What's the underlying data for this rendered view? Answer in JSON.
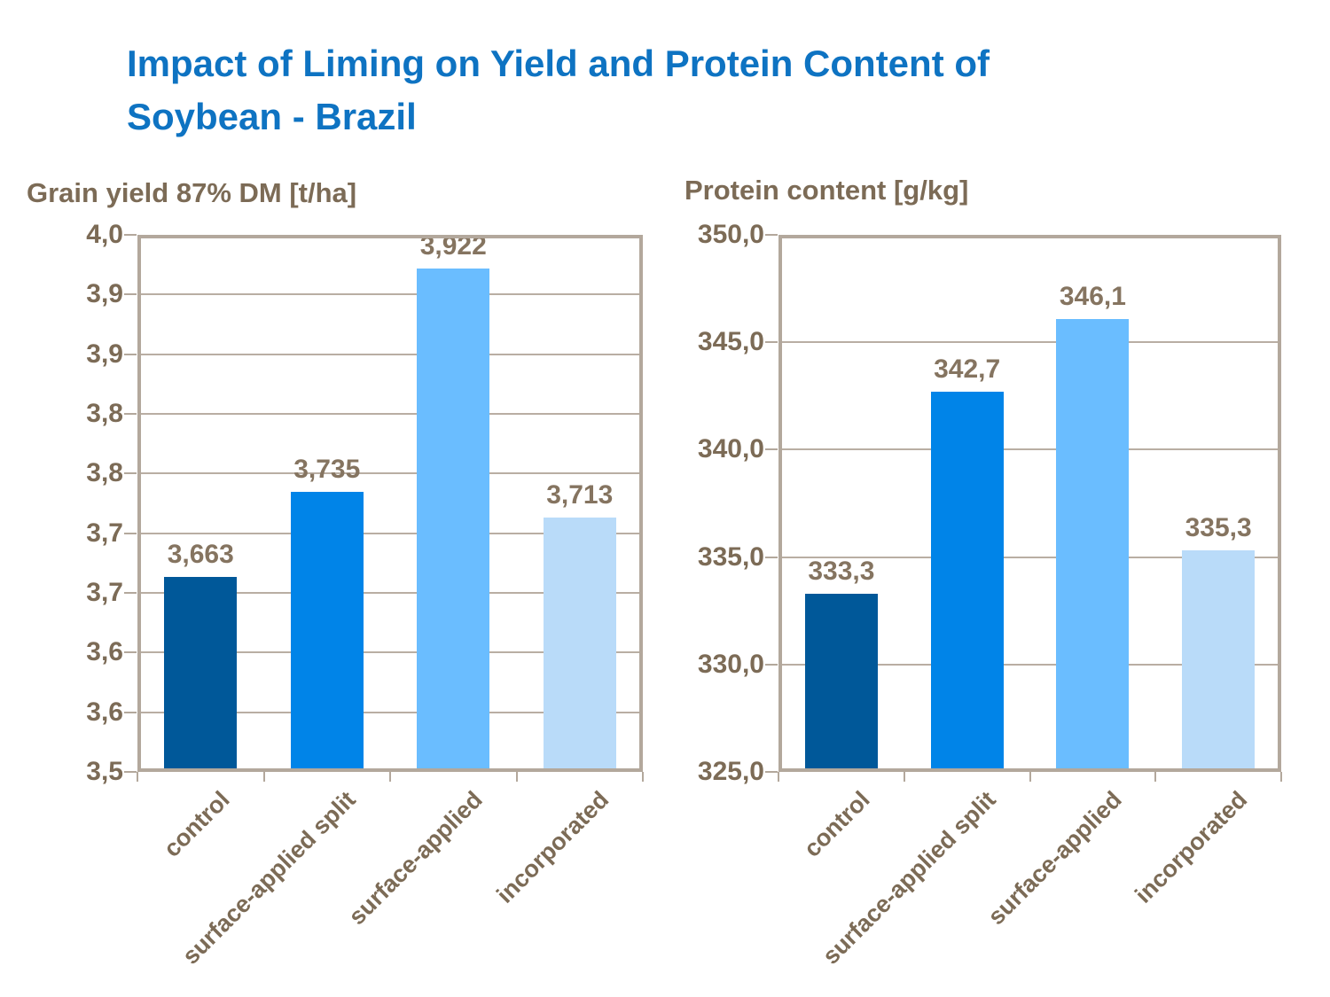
{
  "title": {
    "line1": "Impact of Liming on Yield and Protein Content of",
    "line2": "Soybean - Brazil"
  },
  "colors": {
    "title_blue": "#0e73c2",
    "text_brown": "#7c6b56",
    "value_brown": "#857460",
    "frame_taupe": "#b3a89c",
    "gridline": "#b9aea3",
    "bar_palette": [
      "#005899",
      "#0084e8",
      "#6abdff",
      "#b9dbf9"
    ]
  },
  "chart_data": [
    {
      "type": "bar",
      "title": "Grain yield 87% DM [t/ha]",
      "categories": [
        "control",
        "surface-applied split",
        "surface-applied",
        "incorporated"
      ],
      "values": [
        3.663,
        3.735,
        3.922,
        3.713
      ],
      "value_labels": [
        "3,663",
        "3,735",
        "3,922",
        "3,713"
      ],
      "ylim": [
        3.5,
        3.95
      ],
      "ytick_labels_top_to_bottom": [
        "4,0",
        "3,9",
        "3,9",
        "3,8",
        "3,8",
        "3,7",
        "3,7",
        "3,6",
        "3,6",
        "3,5"
      ],
      "grid": true,
      "legend": "none",
      "bar_colors": [
        "#005899",
        "#0084e8",
        "#6abdff",
        "#b9dbf9"
      ]
    },
    {
      "type": "bar",
      "title": "Protein content [g/kg]",
      "categories": [
        "control",
        "surface-applied split",
        "surface-applied",
        "incorporated"
      ],
      "values": [
        333.3,
        342.7,
        346.1,
        335.3
      ],
      "value_labels": [
        "333,3",
        "342,7",
        "346,1",
        "335,3"
      ],
      "ylim": [
        325.0,
        350.0
      ],
      "ytick_labels_top_to_bottom": [
        "350,0",
        "345,0",
        "340,0",
        "335,0",
        "330,0",
        "325,0"
      ],
      "grid": true,
      "legend": "none",
      "bar_colors": [
        "#005899",
        "#0084e8",
        "#6abdff",
        "#b9dbf9"
      ]
    }
  ]
}
